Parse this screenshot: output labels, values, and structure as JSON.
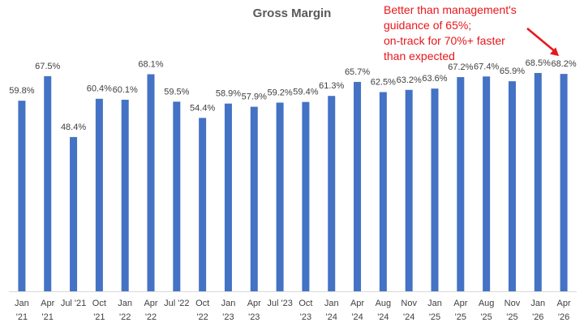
{
  "chart_data": {
    "type": "bar",
    "title": "Gross Margin",
    "xlabel": "",
    "ylabel": "",
    "ylim": [
      0,
      75
    ],
    "grid": false,
    "legend": "none",
    "categories": [
      [
        "Jan",
        "'21"
      ],
      [
        "Apr",
        "'21"
      ],
      [
        "Jul '21",
        ""
      ],
      [
        "Oct",
        "'21"
      ],
      [
        "Jan",
        "'22"
      ],
      [
        "Apr",
        "'22"
      ],
      [
        "Jul '22",
        ""
      ],
      [
        "Oct",
        "'22"
      ],
      [
        "Jan",
        "'23"
      ],
      [
        "Apr",
        "'23"
      ],
      [
        "Jul '23",
        ""
      ],
      [
        "Oct",
        "'23"
      ],
      [
        "Jan",
        "'24"
      ],
      [
        "Apr",
        "'24"
      ],
      [
        "Aug",
        "'24"
      ],
      [
        "Nov",
        "'24"
      ],
      [
        "Jan",
        "'25"
      ],
      [
        "Apr",
        "'25"
      ],
      [
        "Aug",
        "'25"
      ],
      [
        "Nov",
        "'25"
      ],
      [
        "Jan",
        "'26"
      ],
      [
        "Apr",
        "'26"
      ]
    ],
    "values": [
      59.8,
      67.5,
      48.4,
      60.4,
      60.1,
      68.1,
      59.5,
      54.4,
      58.9,
      57.9,
      59.2,
      59.4,
      61.3,
      65.7,
      62.5,
      63.2,
      63.6,
      67.2,
      67.4,
      65.9,
      68.5,
      68.2
    ],
    "labels": [
      "59.8%",
      "67.5%",
      "48.4%",
      "60.4%",
      "60.1%",
      "68.1%",
      "59.5%",
      "54.4%",
      "58.9%",
      "57.9%",
      "59.2%",
      "59.4%",
      "61.3%",
      "65.7%",
      "62.5%",
      "63.2%",
      "63.6%",
      "67.2%",
      "67.4%",
      "65.9%",
      "68.5%",
      "68.2%"
    ],
    "annotation": {
      "lines": [
        "Better than management's",
        "guidance of 65%;",
        "on-track for 70%+ faster",
        "than expected"
      ]
    }
  },
  "colors": {
    "bar": "#4472c4",
    "annotation": "#e8161b",
    "axis": "#d9d9d9",
    "label_text": "#404040",
    "title": "#595959"
  }
}
